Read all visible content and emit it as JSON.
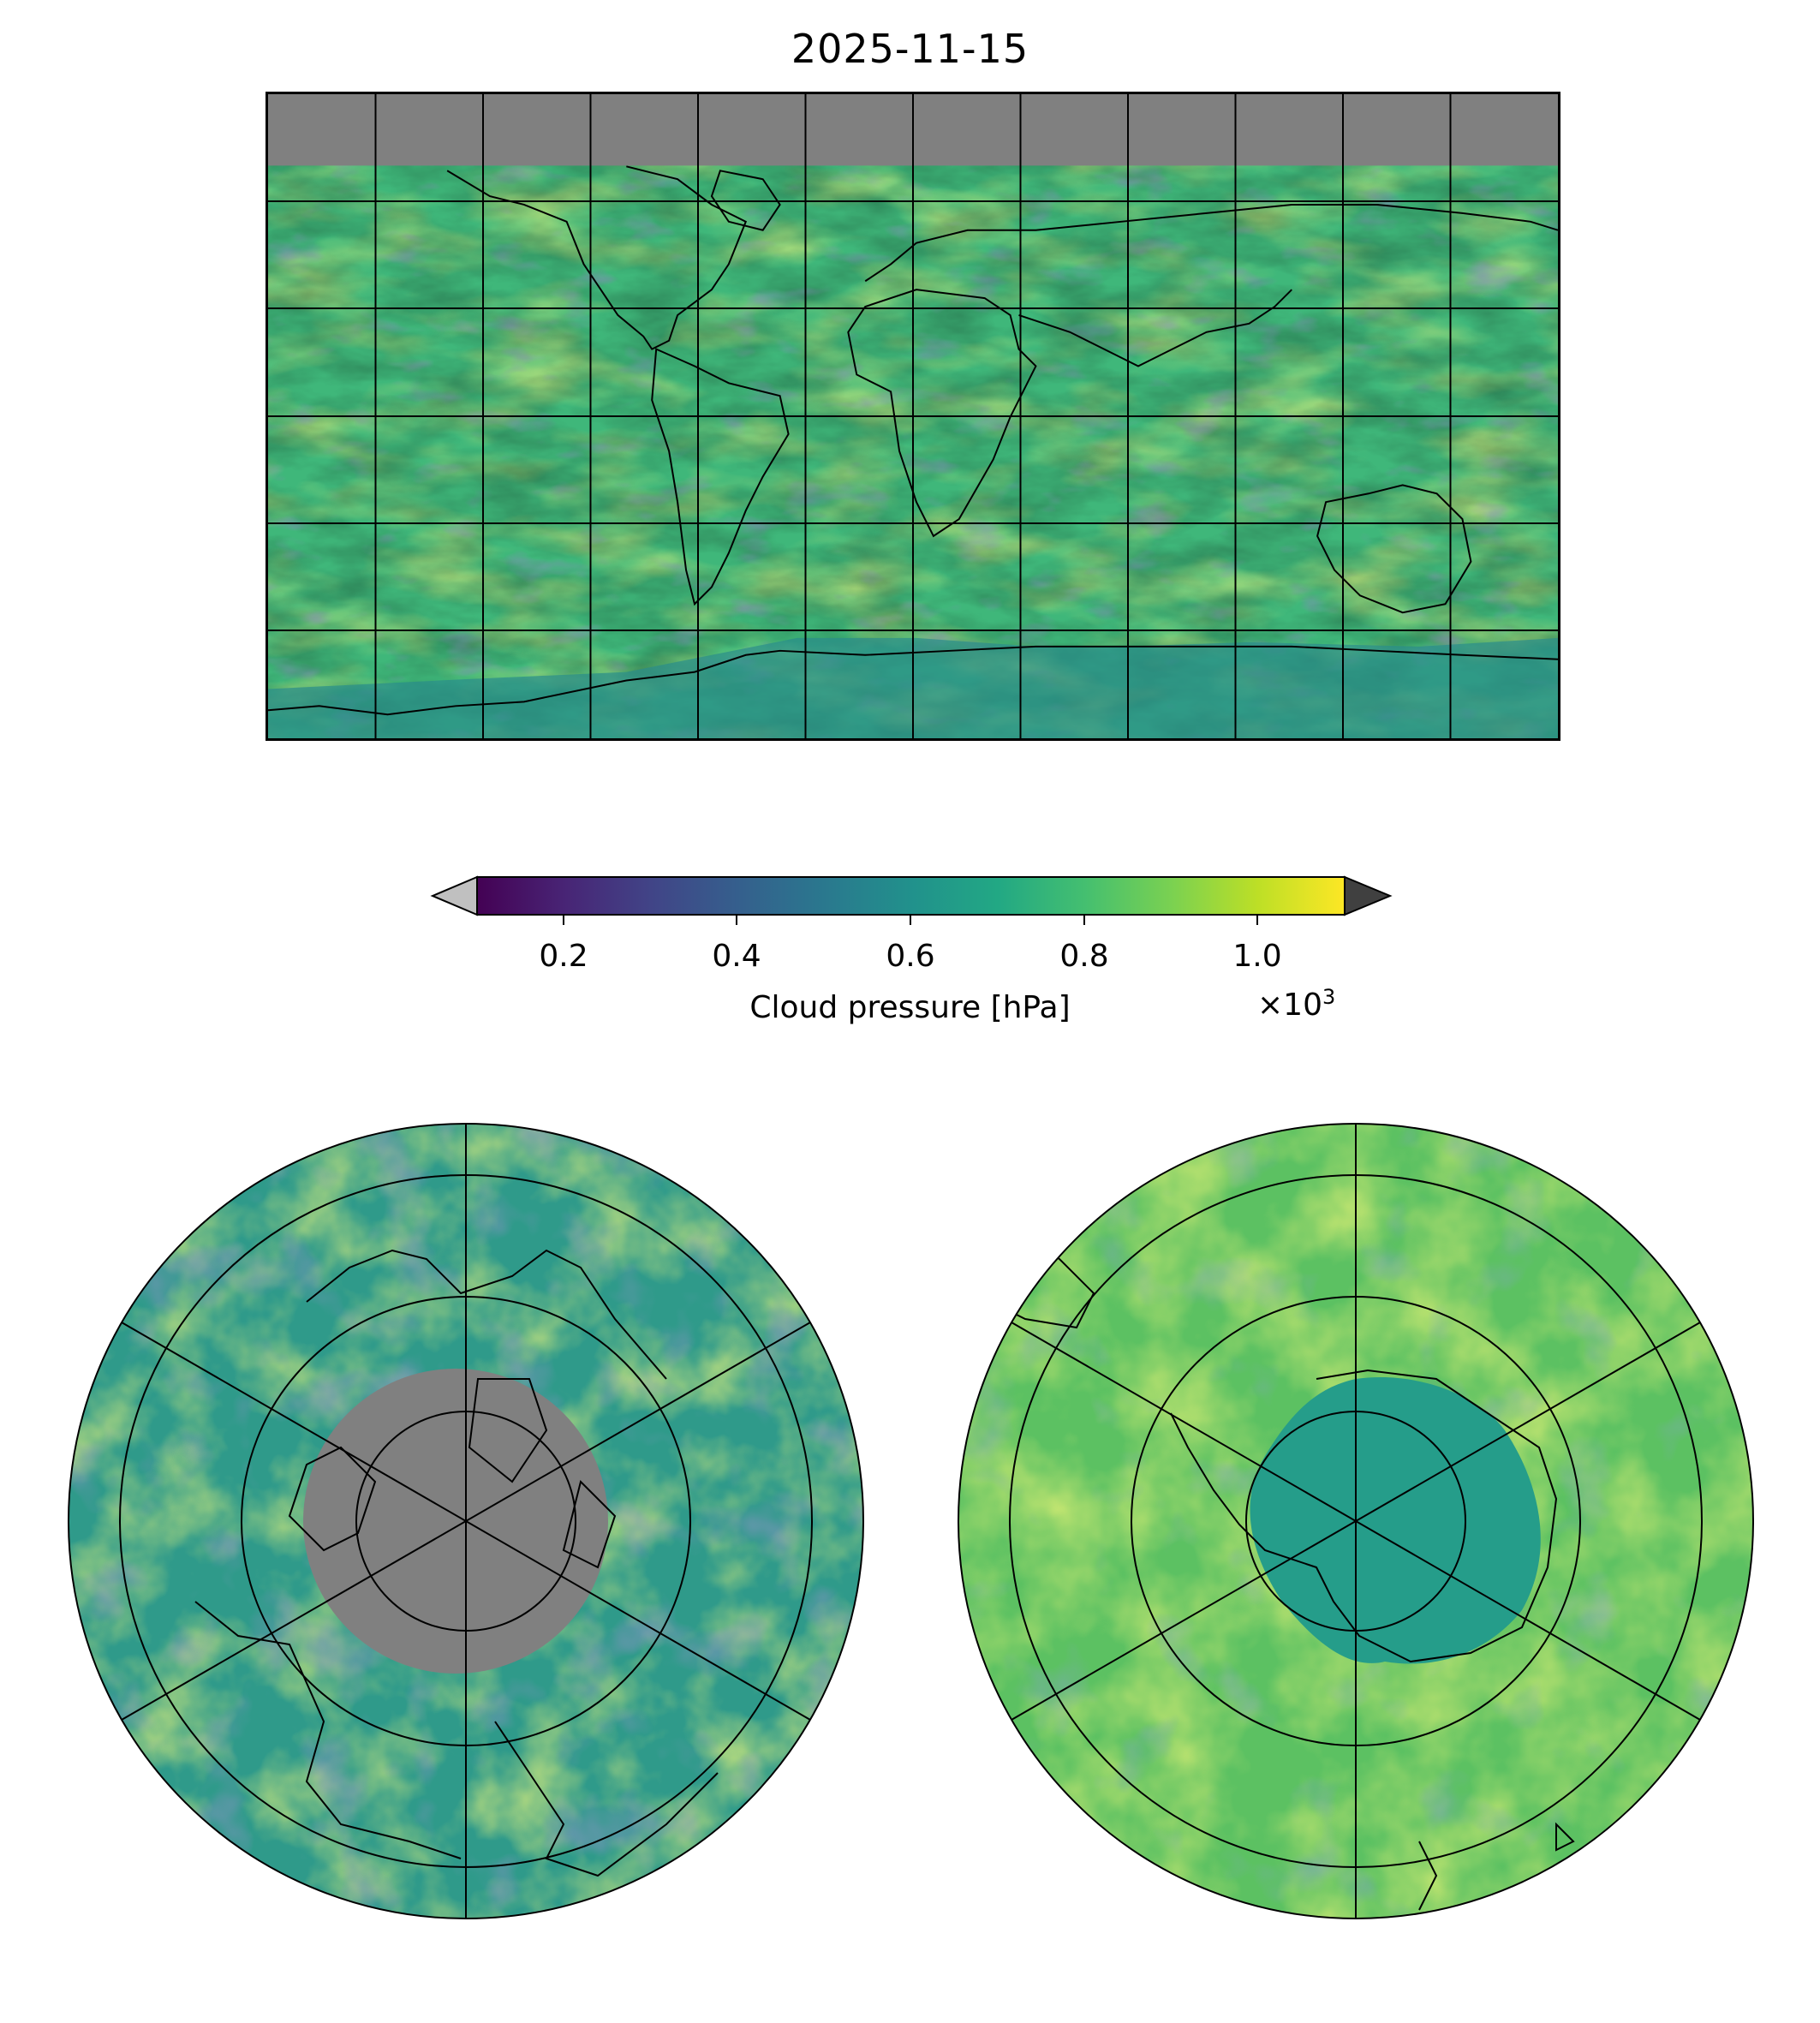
{
  "title": "2025-11-15",
  "colorbar": {
    "label": "Cloud pressure [hPa]",
    "multiplier": "×10",
    "multiplier_exp": "3",
    "ticks": [
      "0.2",
      "0.4",
      "0.6",
      "0.8",
      "1.0"
    ],
    "range": [
      0.1,
      1.1
    ],
    "under_color": "#c0c0c0",
    "over_color": "#404040",
    "colormap": "viridis"
  },
  "maps": {
    "global": {
      "projection": "plate-carree",
      "missing_color": "#808080"
    },
    "north_polar": {
      "projection": "north-polar-stereographic",
      "missing_color": "#808080"
    },
    "south_polar": {
      "projection": "south-polar-stereographic"
    }
  }
}
